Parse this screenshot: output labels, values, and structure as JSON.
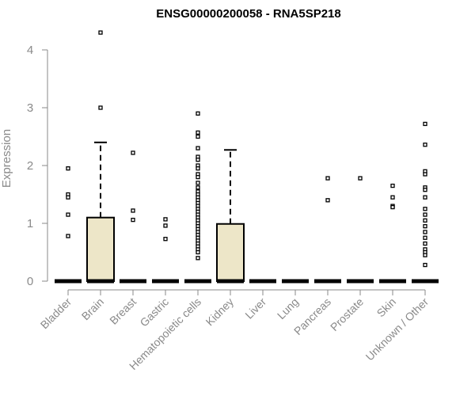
{
  "chart_data": {
    "type": "box",
    "title": "ENSG00000200058 - RNA5SP218",
    "xlabel": "",
    "ylabel": "Expression",
    "ylim": [
      0,
      4.3
    ],
    "yticks": [
      0,
      1,
      2,
      3,
      4
    ],
    "grid": false,
    "box_fill": "#ede6c8",
    "categories": [
      "Bladder",
      "Brain",
      "Breast",
      "Gastric",
      "Hematopoietic cells",
      "Kidney",
      "Liver",
      "Lung",
      "Pancreas",
      "Prostate",
      "Skin",
      "Unknown / Other"
    ],
    "boxes": [
      {
        "category": "Bladder",
        "q1": 0,
        "median": 0,
        "q3": 0,
        "whisker_low": 0,
        "whisker_high": 0,
        "outliers": [
          1.95,
          1.5,
          1.45,
          1.15,
          0.78
        ]
      },
      {
        "category": "Brain",
        "q1": 0,
        "median": 0,
        "q3": 1.1,
        "whisker_low": 0,
        "whisker_high": 2.4,
        "outliers": [
          4.3,
          3.0
        ]
      },
      {
        "category": "Breast",
        "q1": 0,
        "median": 0,
        "q3": 0,
        "whisker_low": 0,
        "whisker_high": 0,
        "outliers": [
          2.22,
          1.22,
          1.06
        ]
      },
      {
        "category": "Gastric",
        "q1": 0,
        "median": 0,
        "q3": 0,
        "whisker_low": 0,
        "whisker_high": 0,
        "outliers": [
          1.07,
          0.96,
          0.73
        ]
      },
      {
        "category": "Hematopoietic cells",
        "q1": 0,
        "median": 0,
        "q3": 0,
        "whisker_low": 0,
        "whisker_high": 0,
        "outliers": [
          2.9,
          2.57,
          2.5,
          2.3,
          2.15,
          2.1,
          2.0,
          1.95,
          1.85,
          1.8,
          1.7,
          1.62,
          1.55,
          1.5,
          1.45,
          1.4,
          1.35,
          1.3,
          1.25,
          1.2,
          1.15,
          1.1,
          1.05,
          1.0,
          0.95,
          0.9,
          0.85,
          0.8,
          0.75,
          0.7,
          0.65,
          0.6,
          0.55,
          0.5,
          0.4
        ]
      },
      {
        "category": "Kidney",
        "q1": 0,
        "median": 0,
        "q3": 0.99,
        "whisker_low": 0,
        "whisker_high": 2.27,
        "outliers": []
      },
      {
        "category": "Liver",
        "q1": 0,
        "median": 0,
        "q3": 0,
        "whisker_low": 0,
        "whisker_high": 0,
        "outliers": []
      },
      {
        "category": "Lung",
        "q1": 0,
        "median": 0,
        "q3": 0,
        "whisker_low": 0,
        "whisker_high": 0,
        "outliers": []
      },
      {
        "category": "Pancreas",
        "q1": 0,
        "median": 0,
        "q3": 0,
        "whisker_low": 0,
        "whisker_high": 0,
        "outliers": [
          1.78,
          1.4
        ]
      },
      {
        "category": "Prostate",
        "q1": 0,
        "median": 0,
        "q3": 0,
        "whisker_low": 0,
        "whisker_high": 0,
        "outliers": [
          1.78
        ]
      },
      {
        "category": "Skin",
        "q1": 0,
        "median": 0,
        "q3": 0,
        "whisker_low": 0,
        "whisker_high": 0,
        "outliers": [
          1.65,
          1.45,
          1.3,
          1.28
        ]
      },
      {
        "category": "Unknown / Other",
        "q1": 0,
        "median": 0,
        "q3": 0,
        "whisker_low": 0,
        "whisker_high": 0,
        "outliers": [
          2.72,
          2.36,
          1.9,
          1.85,
          1.62,
          1.58,
          1.45,
          1.25,
          1.15,
          1.05,
          0.95,
          0.85,
          0.75,
          0.65,
          0.55,
          0.5,
          0.45,
          0.28
        ]
      }
    ]
  }
}
